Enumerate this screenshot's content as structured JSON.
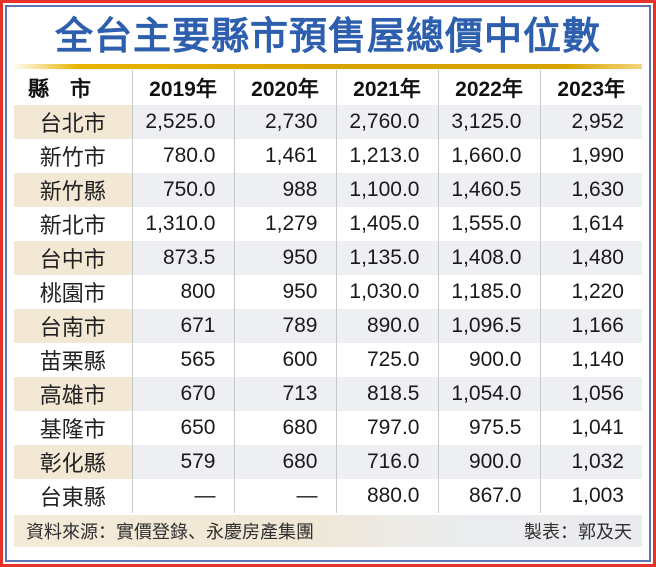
{
  "title": "全台主要縣市預售屋總價中位數",
  "chart_data": {
    "type": "table",
    "title": "全台主要縣市預售屋總價中位數",
    "county_header": "縣　市",
    "year_columns": [
      "2019年",
      "2020年",
      "2021年",
      "2022年",
      "2023年"
    ],
    "rows": [
      {
        "county": "台北市",
        "values": [
          "2,525.0",
          "2,730",
          "2,760.0",
          "3,125.0",
          "2,952"
        ]
      },
      {
        "county": "新竹市",
        "values": [
          "780.0",
          "1,461",
          "1,213.0",
          "1,660.0",
          "1,990"
        ]
      },
      {
        "county": "新竹縣",
        "values": [
          "750.0",
          "988",
          "1,100.0",
          "1,460.5",
          "1,630"
        ]
      },
      {
        "county": "新北市",
        "values": [
          "1,310.0",
          "1,279",
          "1,405.0",
          "1,555.0",
          "1,614"
        ]
      },
      {
        "county": "台中市",
        "values": [
          "873.5",
          "950",
          "1,135.0",
          "1,408.0",
          "1,480"
        ]
      },
      {
        "county": "桃園市",
        "values": [
          "800",
          "950",
          "1,030.0",
          "1,185.0",
          "1,220"
        ]
      },
      {
        "county": "台南市",
        "values": [
          "671",
          "789",
          "890.0",
          "1,096.5",
          "1,166"
        ]
      },
      {
        "county": "苗栗縣",
        "values": [
          "565",
          "600",
          "725.0",
          "900.0",
          "1,140"
        ]
      },
      {
        "county": "高雄市",
        "values": [
          "670",
          "713",
          "818.5",
          "1,054.0",
          "1,056"
        ]
      },
      {
        "county": "基隆市",
        "values": [
          "650",
          "680",
          "797.0",
          "975.5",
          "1,041"
        ]
      },
      {
        "county": "彰化縣",
        "values": [
          "579",
          "680",
          "716.0",
          "900.0",
          "1,032"
        ]
      },
      {
        "county": "台東縣",
        "values": [
          "—",
          "—",
          "880.0",
          "867.0",
          "1,003"
        ]
      }
    ],
    "missing_value_symbol": "—"
  },
  "footer": {
    "source": "資料來源：實價登錄、永慶房產集團",
    "credit": "製表：郭及天"
  },
  "colors": {
    "outer_border_red": "#e5332a",
    "inner_border_blue": "#5b76b2",
    "title_blue": "#2d5fae",
    "divider_gold": "#d9a300",
    "county_cell_beige": "#f3e8d3",
    "value_cell_gray": "#edeff2",
    "separator_gray": "#c6c8cb",
    "footer_beige": "#f3ead7",
    "footer_gray": "#e9ebee"
  }
}
